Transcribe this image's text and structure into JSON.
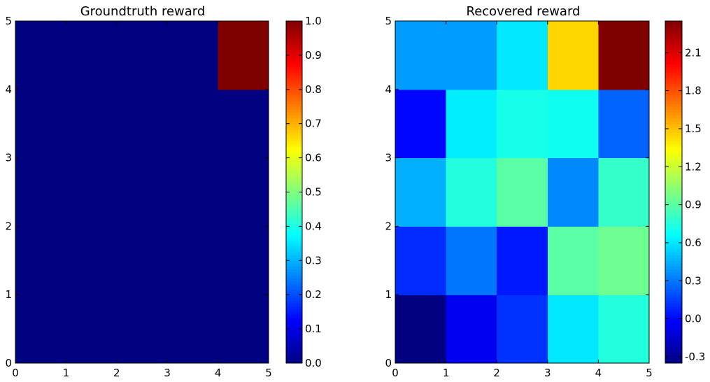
{
  "chart_data": [
    {
      "type": "heatmap",
      "title": "Groundtruth reward",
      "xlabel": "",
      "ylabel": "",
      "xlim": [
        0,
        5
      ],
      "ylim": [
        0,
        5
      ],
      "x_ticks": [
        "0",
        "1",
        "2",
        "3",
        "4",
        "5"
      ],
      "y_ticks": [
        "0",
        "1",
        "2",
        "3",
        "4",
        "5"
      ],
      "colormap": "jet",
      "vmin": 0.0,
      "vmax": 1.0,
      "colorbar_ticks": [
        "0.0",
        "0.1",
        "0.2",
        "0.3",
        "0.4",
        "0.5",
        "0.6",
        "0.7",
        "0.8",
        "0.9",
        "1.0"
      ],
      "grid": false,
      "rows_bottom_to_top": [
        [
          0,
          0,
          0,
          0,
          0
        ],
        [
          0,
          0,
          0,
          0,
          0
        ],
        [
          0,
          0,
          0,
          0,
          0
        ],
        [
          0,
          0,
          0,
          0,
          0
        ],
        [
          0,
          0,
          0,
          0,
          1
        ]
      ]
    },
    {
      "type": "heatmap",
      "title": "Recovered reward",
      "xlabel": "",
      "ylabel": "",
      "xlim": [
        0,
        5
      ],
      "ylim": [
        0,
        5
      ],
      "x_ticks": [
        "0",
        "1",
        "2",
        "3",
        "4",
        "5"
      ],
      "y_ticks": [
        "0",
        "1",
        "2",
        "3",
        "4",
        "5"
      ],
      "colormap": "jet",
      "vmin": -0.35,
      "vmax": 2.35,
      "colorbar_ticks": [
        "-0.3",
        "0.0",
        "0.3",
        "0.6",
        "0.9",
        "1.2",
        "1.5",
        "1.8",
        "2.1"
      ],
      "grid": false,
      "rows_bottom_to_top": [
        [
          -0.35,
          -0.05,
          0.12,
          0.6,
          0.75
        ],
        [
          0.1,
          0.3,
          0.05,
          0.9,
          0.95
        ],
        [
          0.45,
          0.75,
          0.9,
          0.35,
          0.8
        ],
        [
          0.0,
          0.62,
          0.72,
          0.7,
          0.25
        ],
        [
          0.4,
          0.4,
          0.6,
          1.45,
          2.35
        ]
      ]
    }
  ]
}
